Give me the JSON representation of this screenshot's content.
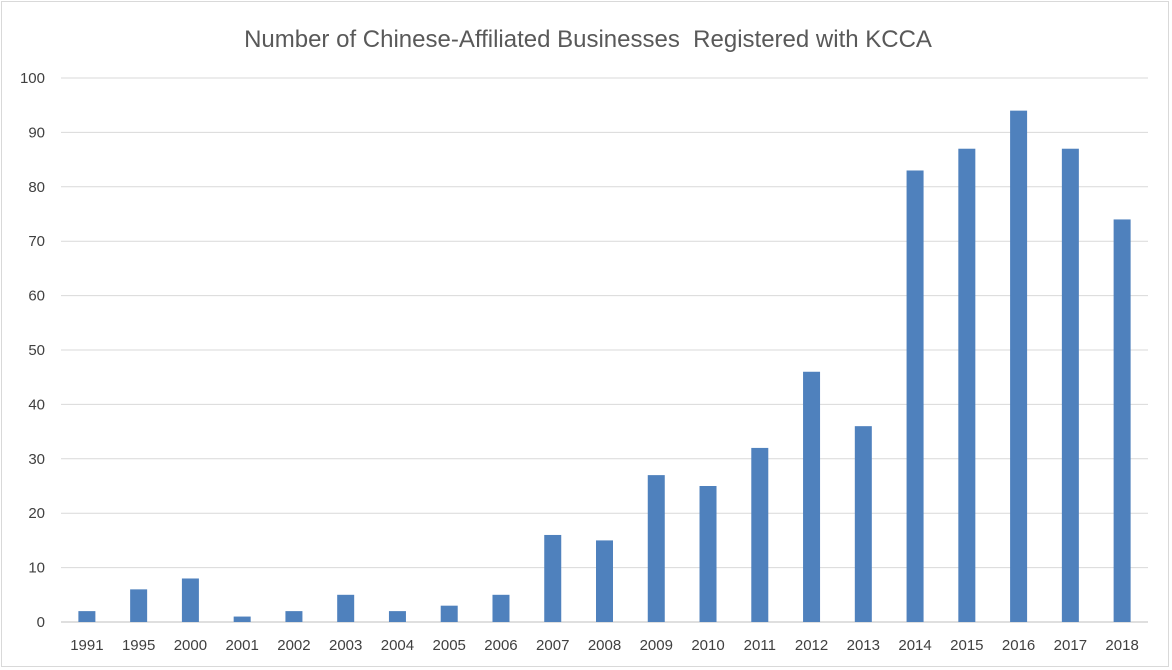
{
  "chart_data": {
    "type": "bar",
    "title": "Number of Chinese-Affiliated Businesses  Registered with KCCA",
    "xlabel": "",
    "ylabel": "",
    "categories": [
      "1991",
      "1995",
      "2000",
      "2001",
      "2002",
      "2003",
      "2004",
      "2005",
      "2006",
      "2007",
      "2008",
      "2009",
      "2010",
      "2011",
      "2012",
      "2013",
      "2014",
      "2015",
      "2016",
      "2017",
      "2018"
    ],
    "values": [
      2,
      6,
      8,
      1,
      2,
      5,
      2,
      3,
      5,
      16,
      15,
      27,
      25,
      32,
      46,
      36,
      83,
      87,
      94,
      87,
      74
    ],
    "ylim": [
      0,
      100
    ],
    "yticks": [
      0,
      10,
      20,
      30,
      40,
      50,
      60,
      70,
      80,
      90,
      100
    ],
    "grid": true,
    "bar_color": "#4f81bd"
  }
}
